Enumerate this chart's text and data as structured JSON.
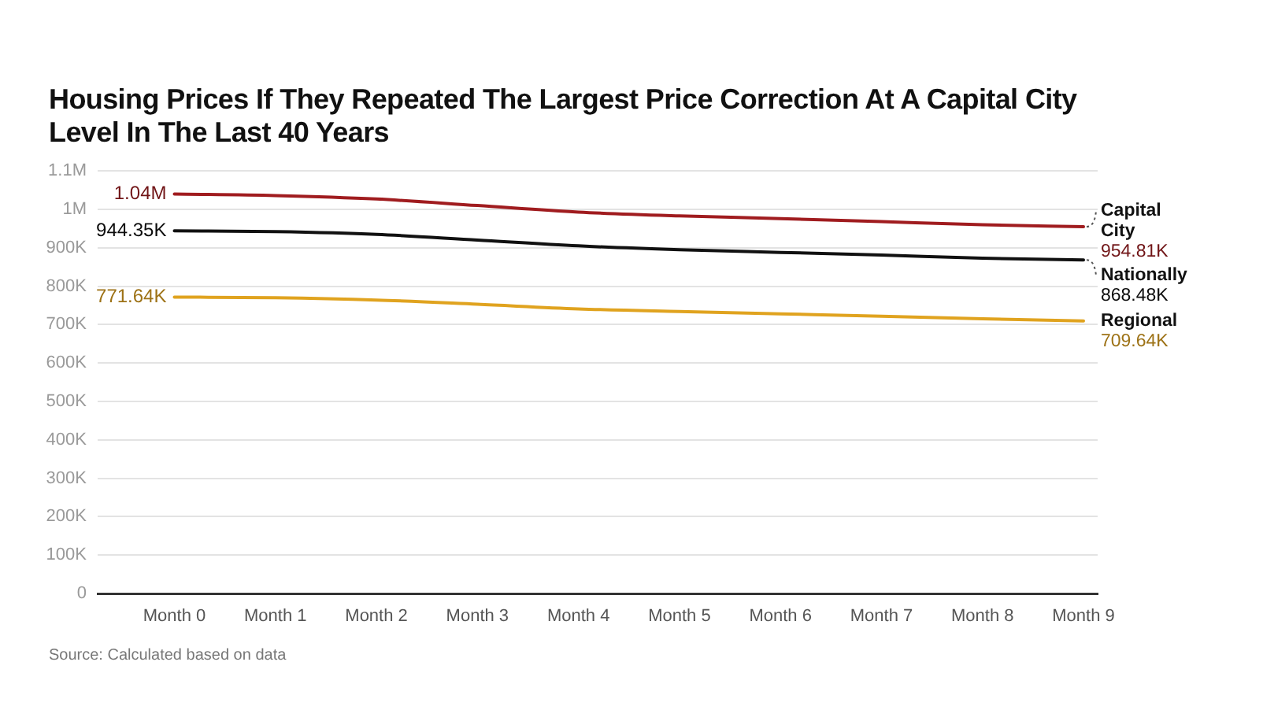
{
  "chart_data": {
    "type": "line",
    "title": "Housing Prices If They Repeated The Largest Price Correction At A Capital City Level In The Last 40 Years",
    "annotations": [
      "Source: Calculated based on data"
    ],
    "categories": [
      "Month 0",
      "Month 1",
      "Month 2",
      "Month 3",
      "Month 4",
      "Month 5",
      "Month 6",
      "Month 7",
      "Month 8",
      "Month 9"
    ],
    "series": [
      {
        "name": "Capital City",
        "color": "#a01c1f",
        "values": [
          1040000,
          1036000,
          1027000,
          1010000,
          993000,
          983000,
          976000,
          968000,
          960000,
          954810
        ],
        "value_labels": [
          "1.04M",
          null,
          null,
          null,
          null,
          null,
          null,
          null,
          null,
          "954.81K"
        ]
      },
      {
        "name": "Nationally",
        "color": "#111111",
        "values": [
          944350,
          942000,
          935000,
          920000,
          905000,
          895000,
          888000,
          881000,
          873000,
          868480
        ],
        "value_labels": [
          "944.35K",
          null,
          null,
          null,
          null,
          null,
          null,
          null,
          null,
          "868.48K"
        ]
      },
      {
        "name": "Regional",
        "color": "#e0a31f",
        "values": [
          771640,
          770000,
          764000,
          753000,
          741000,
          734000,
          728000,
          722000,
          715000,
          709640
        ],
        "value_labels": [
          "771.64K",
          null,
          null,
          null,
          null,
          null,
          null,
          null,
          null,
          "709.64K"
        ]
      }
    ],
    "ylim": [
      0,
      1100000
    ],
    "yticks": [
      0,
      {
        "value": 100000,
        "label": "100K"
      },
      {
        "value": 200000,
        "label": "200K"
      },
      {
        "value": 300000,
        "label": "300K"
      },
      {
        "value": 400000,
        "label": "400K"
      },
      {
        "value": 500000,
        "label": "500K"
      },
      {
        "value": 600000,
        "label": "600K"
      },
      {
        "value": 700000,
        "label": "700K"
      },
      {
        "value": 800000,
        "label": "800K"
      },
      {
        "value": 900000,
        "label": "900K"
      },
      {
        "value": 1000000,
        "label": "1M"
      },
      {
        "value": 1100000,
        "label": "1.1M"
      }
    ],
    "grid": "y"
  }
}
